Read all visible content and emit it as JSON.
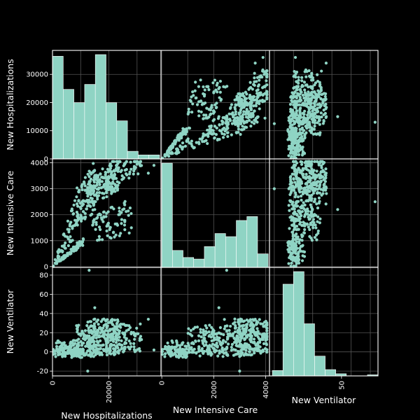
{
  "chart_data": {
    "type": "scatter",
    "kind": "scatter-matrix",
    "variables": [
      {
        "key": "hosp",
        "label": "New Hospitalizations",
        "range": [
          0,
          38500
        ],
        "ticks": [
          0,
          10000,
          20000,
          30000
        ],
        "bottom_ticks": [
          0,
          20000
        ],
        "hist_bins": [
          {
            "from": 0,
            "to": 3800,
            "count": 31
          },
          {
            "from": 3800,
            "to": 7600,
            "count": 21
          },
          {
            "from": 7600,
            "to": 11400,
            "count": 17
          },
          {
            "from": 11400,
            "to": 15200,
            "count": 22.5
          },
          {
            "from": 15200,
            "to": 19000,
            "count": 31.5
          },
          {
            "from": 19000,
            "to": 22800,
            "count": 17
          },
          {
            "from": 22800,
            "to": 26600,
            "count": 11.5
          },
          {
            "from": 26600,
            "to": 30400,
            "count": 2.3
          },
          {
            "from": 30400,
            "to": 34200,
            "count": 1.2
          },
          {
            "from": 34200,
            "to": 38000,
            "count": 1.2
          }
        ]
      },
      {
        "key": "icu",
        "label": "New Intensive Care",
        "range": [
          -30,
          4150
        ],
        "ticks": [
          0,
          1000,
          2000,
          3000,
          4000
        ],
        "bottom_ticks": [
          0,
          2000,
          4000
        ],
        "hist_bins": [
          {
            "from": 0,
            "to": 410,
            "count": 40
          },
          {
            "from": 410,
            "to": 820,
            "count": 6.5
          },
          {
            "from": 820,
            "to": 1230,
            "count": 3.8
          },
          {
            "from": 1230,
            "to": 1640,
            "count": 3.2
          },
          {
            "from": 1640,
            "to": 2050,
            "count": 8
          },
          {
            "from": 2050,
            "to": 2460,
            "count": 13
          },
          {
            "from": 2460,
            "to": 2870,
            "count": 11.8
          },
          {
            "from": 2870,
            "to": 3280,
            "count": 18
          },
          {
            "from": 3280,
            "to": 3690,
            "count": 19.5
          },
          {
            "from": 3690,
            "to": 4100,
            "count": 5.2
          }
        ]
      },
      {
        "key": "vent",
        "label": "New Ventilator",
        "range": [
          -25,
          88
        ],
        "ticks": [
          -20,
          0,
          20,
          40,
          60,
          80
        ],
        "bottom_ticks": [
          50
        ],
        "hist_bins": [
          {
            "from": -22,
            "to": -11,
            "count": 3
          },
          {
            "from": -11,
            "to": 0,
            "count": 51
          },
          {
            "from": 0,
            "to": 11,
            "count": 58
          },
          {
            "from": 11,
            "to": 22,
            "count": 29
          },
          {
            "from": 22,
            "to": 33,
            "count": 11
          },
          {
            "from": 33,
            "to": 44,
            "count": 3.5
          },
          {
            "from": 44,
            "to": 55,
            "count": 1.2
          },
          {
            "from": 55,
            "to": 66,
            "count": 0
          },
          {
            "from": 66,
            "to": 77,
            "count": 0
          },
          {
            "from": 77,
            "to": 88,
            "count": 0.6
          }
        ]
      }
    ],
    "diagonal": "histogram",
    "grid": true,
    "colors": {
      "background": "#000000",
      "marker": "#8fd4c4",
      "text": "#ffffff",
      "grid": "#555555"
    },
    "clusters": [
      {
        "n": 80,
        "hosp": [
          200,
          11000
        ],
        "icu_ratio": [
          0.075,
          0.105
        ],
        "vent": [
          -6,
          6
        ]
      },
      {
        "n": 90,
        "hosp": [
          8500,
          15000
        ],
        "icu": [
          1800,
          3600
        ],
        "vent": [
          -5,
          28
        ]
      },
      {
        "n": 160,
        "hosp": [
          12000,
          24000
        ],
        "icu": [
          2600,
          3800
        ],
        "vent": [
          -4,
          35
        ]
      },
      {
        "n": 70,
        "hosp": [
          18000,
          32000
        ],
        "icu": [
          3200,
          4000
        ],
        "vent": [
          0,
          30
        ]
      },
      {
        "n": 80,
        "hosp": [
          14000,
          28000
        ],
        "icu": [
          1100,
          2300
        ],
        "vent": [
          -2,
          26
        ]
      },
      {
        "n": 60,
        "hosp": [
          900,
          9000
        ],
        "icu_ratio": [
          0.14,
          0.33
        ],
        "vent": [
          -5,
          12
        ]
      }
    ],
    "outliers": [
      {
        "hosp": 13000,
        "icu": 2500,
        "vent": 85
      },
      {
        "hosp": 15000,
        "icu": 2200,
        "vent": 46
      },
      {
        "hosp": 12500,
        "icu": 3000,
        "vent": -20
      },
      {
        "hosp": 36000,
        "icu": 3900,
        "vent": 2
      },
      {
        "hosp": 34000,
        "icu": 3600,
        "vent": 34
      },
      {
        "hosp": 31000,
        "icu": 4000,
        "vent": 14
      }
    ]
  }
}
